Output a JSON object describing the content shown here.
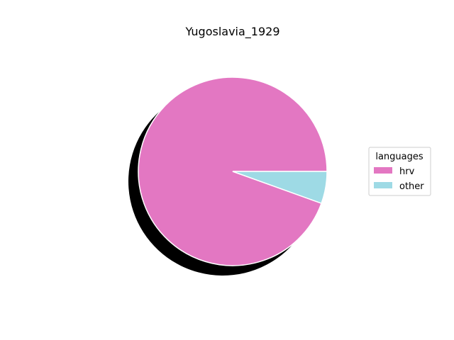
{
  "chart_data": {
    "type": "pie",
    "title": "Yugoslavia_1929",
    "categories": [
      "hrv",
      "other"
    ],
    "values": [
      94.5,
      5.5
    ],
    "colors": {
      "hrv": "#e377c2",
      "other": "#9edae5"
    },
    "legend": {
      "title": "languages",
      "entries": [
        "hrv",
        "other"
      ],
      "placement": "right"
    },
    "shadow": true
  }
}
